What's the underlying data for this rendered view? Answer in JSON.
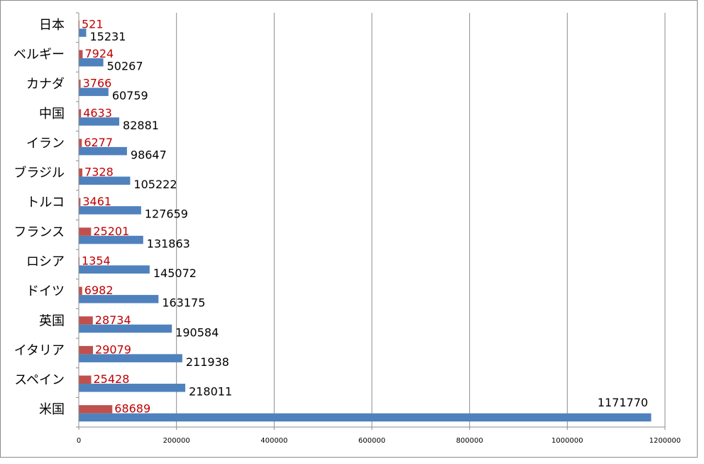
{
  "chart_data": {
    "type": "bar",
    "orientation": "horizontal",
    "categories": [
      "日本",
      "ベルギー",
      "カナダ",
      "中国",
      "イラン",
      "ブラジル",
      "トルコ",
      "フランス",
      "ロシア",
      "ドイツ",
      "英国",
      "イタリア",
      "スペイン",
      "米国"
    ],
    "series": [
      {
        "values": [
          15231,
          50267,
          60759,
          82881,
          98647,
          105222,
          127659,
          131863,
          145072,
          163175,
          190584,
          211938,
          218011,
          1171770
        ],
        "color": "#4f81bd",
        "label_color": "#000000"
      },
      {
        "values": [
          521,
          7924,
          3766,
          4633,
          6277,
          7328,
          3461,
          25201,
          1354,
          6982,
          28734,
          29079,
          25428,
          68689
        ],
        "color": "#c0504d",
        "label_color": "#c00000"
      }
    ],
    "xlim": [
      0,
      1200000
    ],
    "xticks": [
      "0",
      "200000",
      "400000",
      "600000",
      "800000",
      "1000000",
      "1200000"
    ],
    "grid": true,
    "legend": "none",
    "title": "",
    "xlabel": "",
    "ylabel": ""
  }
}
